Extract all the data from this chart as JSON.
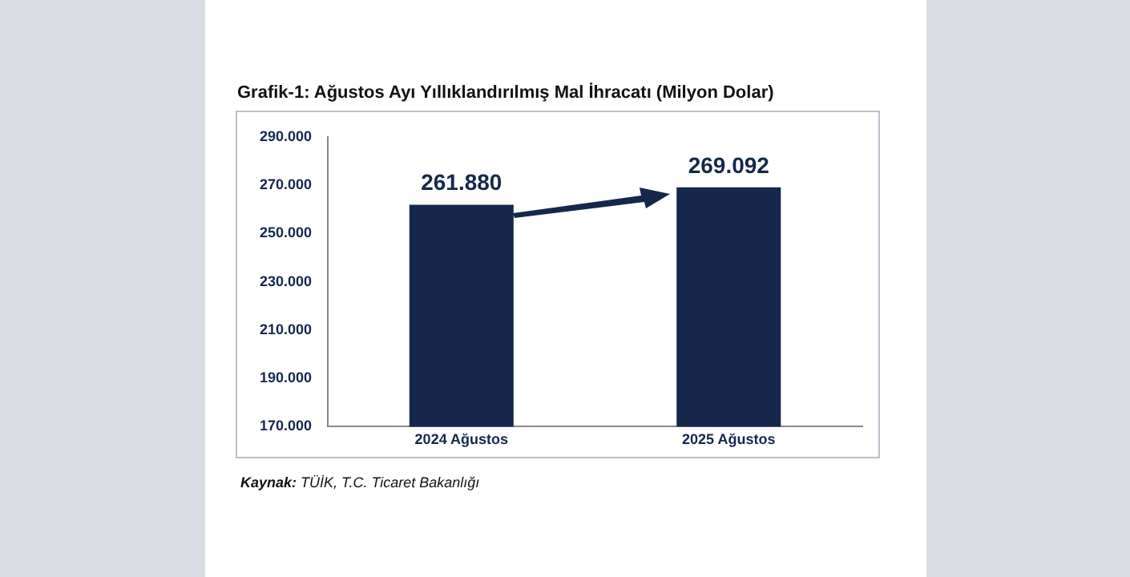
{
  "chart_data": {
    "type": "bar",
    "title": "Grafik-1: Ağustos Ayı Yıllıklandırılmış Mal İhracatı (Milyon Dolar)",
    "categories": [
      "2024 Ağustos",
      "2025 Ağustos"
    ],
    "values": [
      261880,
      269092
    ],
    "value_labels": [
      "261.880",
      "269.092"
    ],
    "color": "#15284b",
    "ylim": [
      170000,
      290000
    ],
    "yticks": [
      {
        "value": 170000,
        "label": "170.000"
      },
      {
        "value": 190000,
        "label": "190.000"
      },
      {
        "value": 210000,
        "label": "210.000"
      },
      {
        "value": 230000,
        "label": "230.000"
      },
      {
        "value": 250000,
        "label": "250.000"
      },
      {
        "value": 270000,
        "label": "270.000"
      },
      {
        "value": 290000,
        "label": "290.000"
      }
    ],
    "grid": false,
    "legend": false,
    "annotations": [
      "Kaynak: TÜİK, T.C. Ticaret Bakanlığı"
    ]
  }
}
